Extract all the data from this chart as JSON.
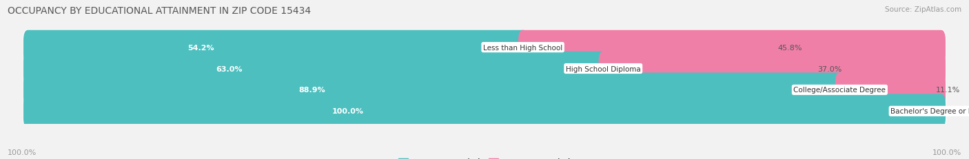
{
  "title": "OCCUPANCY BY EDUCATIONAL ATTAINMENT IN ZIP CODE 15434",
  "source": "Source: ZipAtlas.com",
  "categories": [
    "Less than High School",
    "High School Diploma",
    "College/Associate Degree",
    "Bachelor's Degree or higher"
  ],
  "owner_pct": [
    54.2,
    63.0,
    88.9,
    100.0
  ],
  "renter_pct": [
    45.8,
    37.0,
    11.1,
    0.0
  ],
  "owner_color": "#4DBFBF",
  "renter_color": "#F07FA8",
  "bg_color": "#F2F2F2",
  "row_bg_color": "#E8E8E8",
  "title_fontsize": 10,
  "source_fontsize": 7.5,
  "label_fontsize": 7.5,
  "pct_fontsize": 8,
  "legend_fontsize": 8.5,
  "axis_label_left": "100.0%",
  "axis_label_right": "100.0%"
}
